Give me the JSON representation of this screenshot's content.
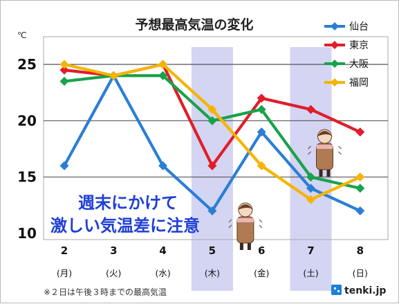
{
  "chart_data": {
    "type": "line",
    "title": "予想最高気温の変化",
    "yunit": "℃",
    "ylim": [
      10,
      25
    ],
    "yticks": [
      10,
      15,
      20,
      25
    ],
    "grid": true,
    "legend_position": "top-right",
    "categories": [
      {
        "day": "2",
        "weekday": "(月)"
      },
      {
        "day": "3",
        "weekday": "(火)"
      },
      {
        "day": "4",
        "weekday": "(水)"
      },
      {
        "day": "5",
        "weekday": "(木)"
      },
      {
        "day": "6",
        "weekday": "(金)"
      },
      {
        "day": "7",
        "weekday": "(土)"
      },
      {
        "day": "8",
        "weekday": "(日)"
      }
    ],
    "weekend_highlight": [
      "5",
      "7"
    ],
    "series": [
      {
        "name": "仙台",
        "color": "#2a7fd4",
        "values": [
          16,
          24,
          16,
          12,
          19,
          14,
          12
        ]
      },
      {
        "name": "東京",
        "color": "#e11d2a",
        "values": [
          24.5,
          24,
          25,
          16,
          22,
          21,
          19
        ]
      },
      {
        "name": "大阪",
        "color": "#17a34a",
        "values": [
          23.5,
          24,
          24,
          20,
          21,
          15,
          14
        ]
      },
      {
        "name": "福岡",
        "color": "#f5b400",
        "values": [
          25,
          24,
          25,
          21,
          16,
          13,
          15
        ]
      }
    ],
    "annotation": [
      "週末にかけて",
      "激しい気温差に注意"
    ],
    "footnote": "※２日は午後３時までの最高気温"
  },
  "logo": {
    "text": "tenki.jp"
  }
}
